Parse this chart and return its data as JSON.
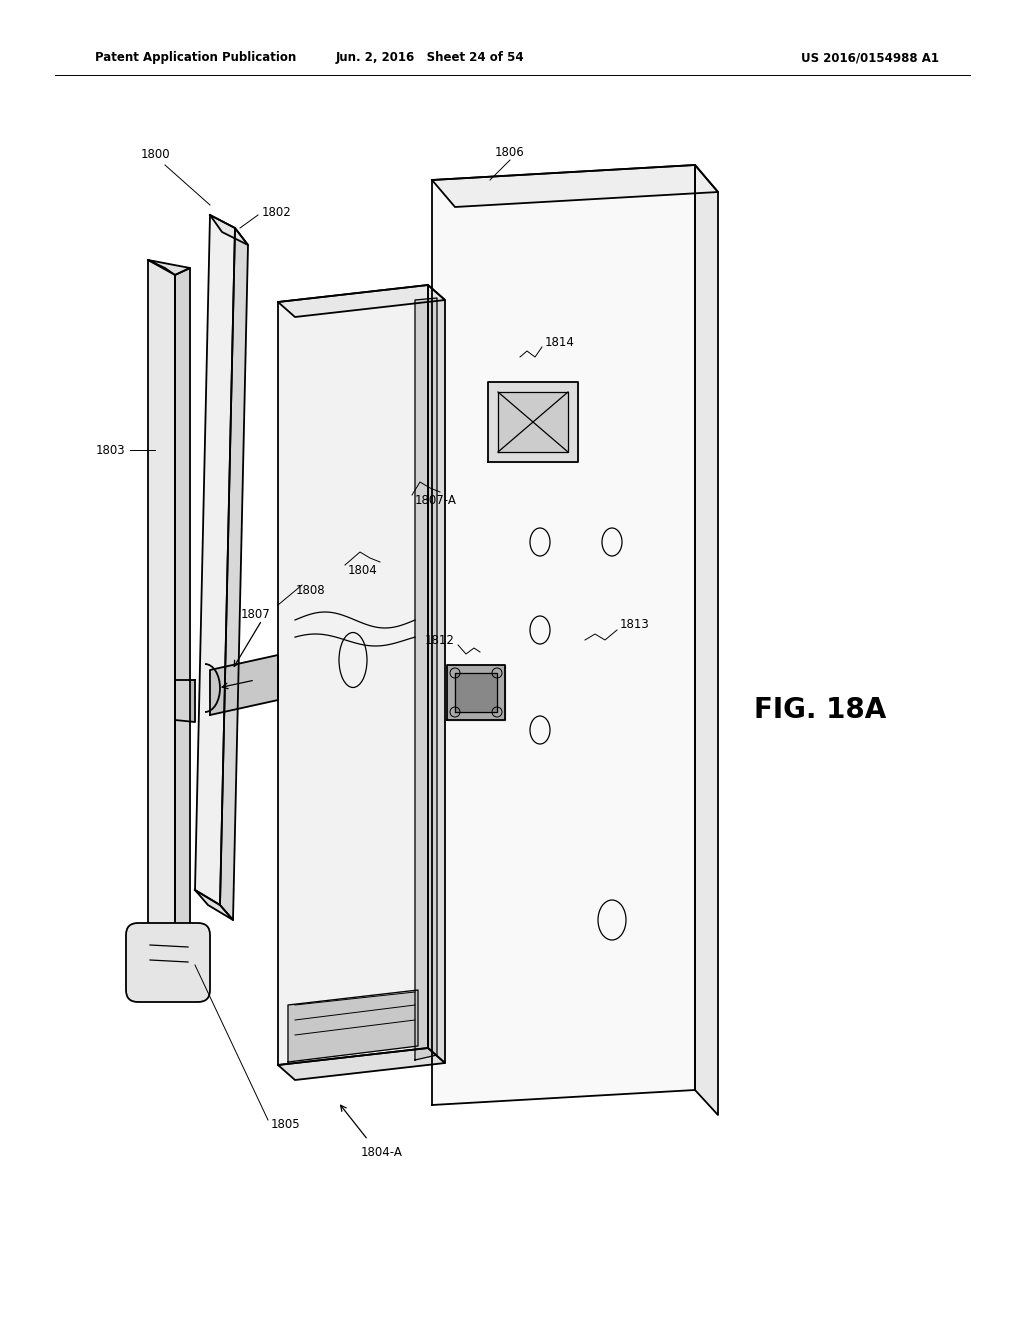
{
  "title_left": "Patent Application Publication",
  "title_mid": "Jun. 2, 2016   Sheet 24 of 54",
  "title_right": "US 2016/0154988 A1",
  "fig_label": "FIG. 18A",
  "bg_color": "#ffffff",
  "line_color": "#000000",
  "header_fontsize": 8.5,
  "fig_label_fontsize": 20,
  "label_fontsize": 8.5
}
